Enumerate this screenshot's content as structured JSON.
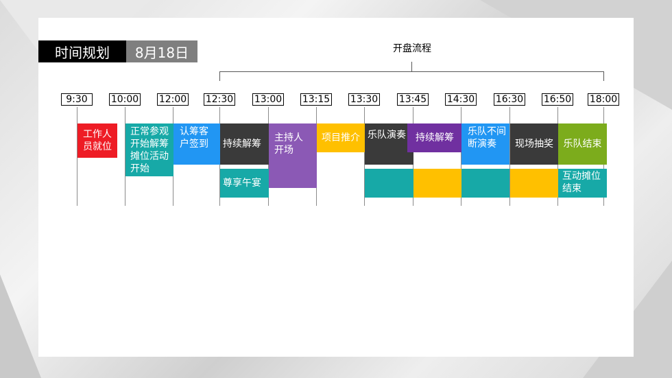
{
  "header": {
    "title": "时间规划",
    "date": "8月18日"
  },
  "process": {
    "title": "开盘流程"
  },
  "times": [
    "9:30",
    "10:00",
    "12:00",
    "12:30",
    "13:00",
    "13:15",
    "13:30",
    "13:45",
    "14:30",
    "16:30",
    "16:50",
    "18:00"
  ],
  "blocks": {
    "b1": "工作人员就位",
    "b2": "正常参观开始解筹摊位活动开始",
    "b3": "认筹客户签到",
    "b4": "持续解筹",
    "b5": "尊享午宴",
    "b6": "主持人开场",
    "b7": "项目推介",
    "b8": "乐队演奏",
    "b9": "持续解筹",
    "b10": "乐队不间断演奏",
    "b11": "现场抽奖",
    "b12": "乐队结束",
    "b13": "互动摊位结束"
  },
  "colors": {
    "red": "#ee1c25",
    "teal": "#17a9a7",
    "blue": "#2196f3",
    "dark": "#3a3a3a",
    "purple": "#8b59b5",
    "violet": "#7030a0",
    "yellow": "#ffc000",
    "green": "#7cac1c"
  }
}
